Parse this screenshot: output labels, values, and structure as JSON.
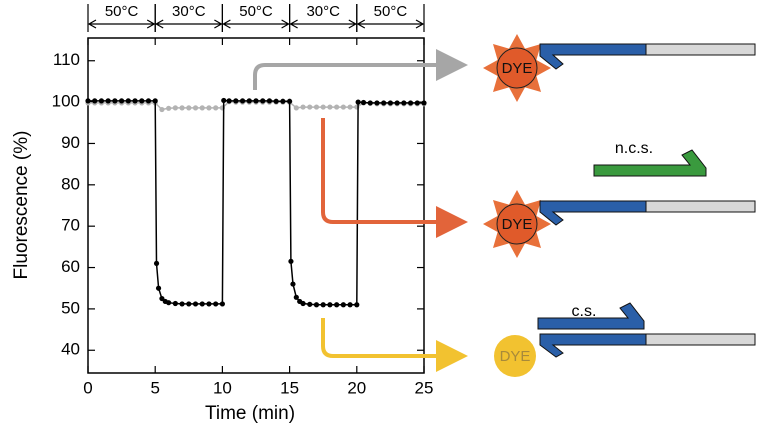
{
  "chart_data": {
    "type": "line",
    "x_label": "Time (min)",
    "y_label": "Fluorescence (%)",
    "xlim": [
      0,
      25
    ],
    "xticks": [
      0,
      5,
      10,
      15,
      20,
      25
    ],
    "ylim": [
      34.5,
      115.5
    ],
    "yticks": [
      40,
      50,
      60,
      70,
      80,
      90,
      100,
      110
    ],
    "temperature_periods": [
      {
        "label": "50°C",
        "x": [
          0,
          5
        ]
      },
      {
        "label": "30°C",
        "x": [
          5,
          10
        ]
      },
      {
        "label": "50°C",
        "x": [
          10,
          15
        ]
      },
      {
        "label": "30°C",
        "x": [
          15,
          20
        ]
      },
      {
        "label": "50°C",
        "x": [
          20,
          25
        ]
      }
    ],
    "series": [
      {
        "color": "#b3b3b3",
        "x": [
          0,
          0.5,
          1,
          1.5,
          2,
          2.5,
          3,
          3.5,
          4,
          4.5,
          5,
          5.5,
          6,
          6.5,
          7,
          7.5,
          8,
          8.5,
          9,
          9.5,
          10,
          10.5,
          11,
          11.5,
          12,
          12.5,
          13,
          13.5,
          14,
          14.5,
          15,
          15.5,
          16,
          16.5,
          17,
          17.5,
          18,
          18.5,
          19,
          19.5,
          20,
          20.5,
          21,
          21.5,
          22,
          22.5,
          23,
          23.5,
          24,
          24.5,
          25
        ],
        "values": [
          99.8,
          99.8,
          99.8,
          99.8,
          99.8,
          99.8,
          99.8,
          99.8,
          99.8,
          99.8,
          99.8,
          98.2,
          98.5,
          98.6,
          98.6,
          98.6,
          98.6,
          98.6,
          98.6,
          98.6,
          98.6,
          100.1,
          100.0,
          100.0,
          100.0,
          100.0,
          100.0,
          100.0,
          100.0,
          100.0,
          100.0,
          98.6,
          98.8,
          98.8,
          98.8,
          98.8,
          98.8,
          98.8,
          98.8,
          98.8,
          98.8,
          99.8,
          99.7,
          99.6,
          99.6,
          99.6,
          99.6,
          99.6,
          99.6,
          99.6,
          99.6
        ]
      },
      {
        "color": "#000000",
        "x": [
          0,
          0.5,
          1,
          1.5,
          2,
          2.5,
          3,
          3.5,
          4,
          4.5,
          5,
          5.1,
          5.25,
          5.5,
          5.75,
          6,
          6.5,
          7,
          7.5,
          8,
          8.5,
          9,
          9.5,
          10,
          10.1,
          10.5,
          11,
          11.5,
          12,
          12.5,
          13,
          13.5,
          14,
          14.5,
          15,
          15.1,
          15.25,
          15.5,
          15.75,
          16,
          16.5,
          17,
          17.5,
          18,
          18.5,
          19,
          19.5,
          20,
          20.1,
          20.5,
          21,
          21.5,
          22,
          22.5,
          23,
          23.5,
          24,
          24.5,
          25
        ],
        "values": [
          100.3,
          100.3,
          100.3,
          100.3,
          100.3,
          100.3,
          100.3,
          100.3,
          100.3,
          100.3,
          100.3,
          61,
          55,
          52.5,
          51.8,
          51.5,
          51.3,
          51.2,
          51.2,
          51.2,
          51.2,
          51.2,
          51.2,
          51.2,
          100.4,
          100.3,
          100.3,
          100.3,
          100.3,
          100.3,
          100.3,
          100.3,
          100.2,
          100.2,
          100.2,
          61.5,
          56,
          52.8,
          51.8,
          51.3,
          51.1,
          51.0,
          51.0,
          51.0,
          51.0,
          51.0,
          51.0,
          51.0,
          100.0,
          99.9,
          99.8,
          99.8,
          99.8,
          99.8,
          99.8,
          99.8,
          99.8,
          99.8,
          99.8
        ]
      }
    ]
  },
  "diagram": {
    "dye_labels": [
      "DYE",
      "DYE",
      "DYE"
    ],
    "ncs_label": "n.c.s.",
    "cs_label": "c.s."
  }
}
